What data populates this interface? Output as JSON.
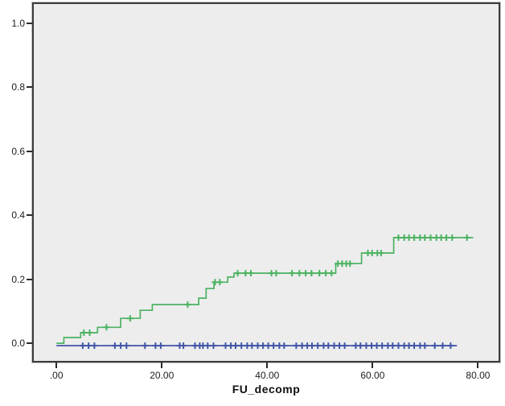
{
  "chart": {
    "title": "",
    "x_axis_title": "FU_decomp",
    "y_tick_labels": [
      "1.0",
      "0.8",
      "0.6",
      "0.4",
      "0.2",
      "0.0"
    ],
    "x_tick_labels": [
      ".00",
      "20.00",
      "40.00",
      "60.00",
      "80.00"
    ],
    "panel_background": "#ededee",
    "border_color": "#3c3c3c"
  },
  "chart_data": {
    "type": "line",
    "subtype": "kaplan-meier-cumulative-incidence-step",
    "title": "",
    "xlabel": "FU_decomp",
    "ylabel": "",
    "xlim": [
      -4.3,
      83.9
    ],
    "ylim": [
      -0.055,
      1.06
    ],
    "x_ticks": {
      "values": [
        0,
        20,
        40,
        60,
        80
      ],
      "labels": [
        ".00",
        "20.00",
        "40.00",
        "60.00",
        "80.00"
      ]
    },
    "y_ticks": {
      "values": [
        1.0,
        0.8,
        0.6,
        0.4,
        0.2,
        0.0
      ],
      "labels": [
        "1.0",
        "0.8",
        "0.6",
        "0.4",
        "0.2",
        "0.0"
      ]
    },
    "grid": false,
    "legend": "none",
    "series": [
      {
        "name": "green_event_step_curve",
        "color": "#4cb261",
        "start_x": 0,
        "end_x": 79.1,
        "step_points": [
          [
            0,
            0.0
          ],
          [
            1.4,
            0.018
          ],
          [
            4.6,
            0.033
          ],
          [
            7.8,
            0.05
          ],
          [
            12.2,
            0.078
          ],
          [
            15.9,
            0.103
          ],
          [
            18.2,
            0.121
          ],
          [
            27.0,
            0.141
          ],
          [
            28.4,
            0.171
          ],
          [
            29.9,
            0.191
          ],
          [
            32.5,
            0.207
          ],
          [
            33.7,
            0.219
          ],
          [
            53.0,
            0.249
          ],
          [
            57.9,
            0.282
          ],
          [
            64.0,
            0.33
          ]
        ],
        "censor_x": [
          5.2,
          6.3,
          9.5,
          14.0,
          24.9,
          30.1,
          31.0,
          34.4,
          35.9,
          36.9,
          40.8,
          41.7,
          44.7,
          46.1,
          47.3,
          48.4,
          49.9,
          51.1,
          52.2,
          53.4,
          54.2,
          55.0,
          55.7,
          59.1,
          59.9,
          60.9,
          61.6,
          64.9,
          66.0,
          66.9,
          67.9,
          69.0,
          69.9,
          71.0,
          72.1,
          73.0,
          74.0,
          75.1,
          77.9
        ]
      },
      {
        "name": "blue_flat_zero_curve",
        "color": "#4156a6",
        "start_x": 0,
        "end_x": 76.0,
        "step_points": [
          [
            0,
            0.0
          ]
        ],
        "censor_x": [
          5.0,
          6.1,
          7.2,
          11.1,
          12.2,
          13.3,
          16.8,
          18.8,
          19.8,
          23.4,
          24.1,
          26.3,
          27.2,
          27.8,
          28.7,
          29.8,
          32.1,
          33.1,
          34.0,
          35.1,
          36.2,
          37.1,
          38.2,
          39.2,
          40.2,
          41.2,
          42.3,
          43.2,
          45.5,
          46.6,
          47.6,
          48.5,
          49.6,
          50.7,
          51.6,
          52.7,
          53.7,
          54.7,
          56.8,
          57.7,
          58.8,
          59.8,
          60.8,
          61.8,
          62.9,
          63.8,
          64.9,
          66.0,
          66.9,
          67.9,
          69.0,
          69.9,
          71.8,
          73.3,
          74.8
        ]
      }
    ]
  }
}
